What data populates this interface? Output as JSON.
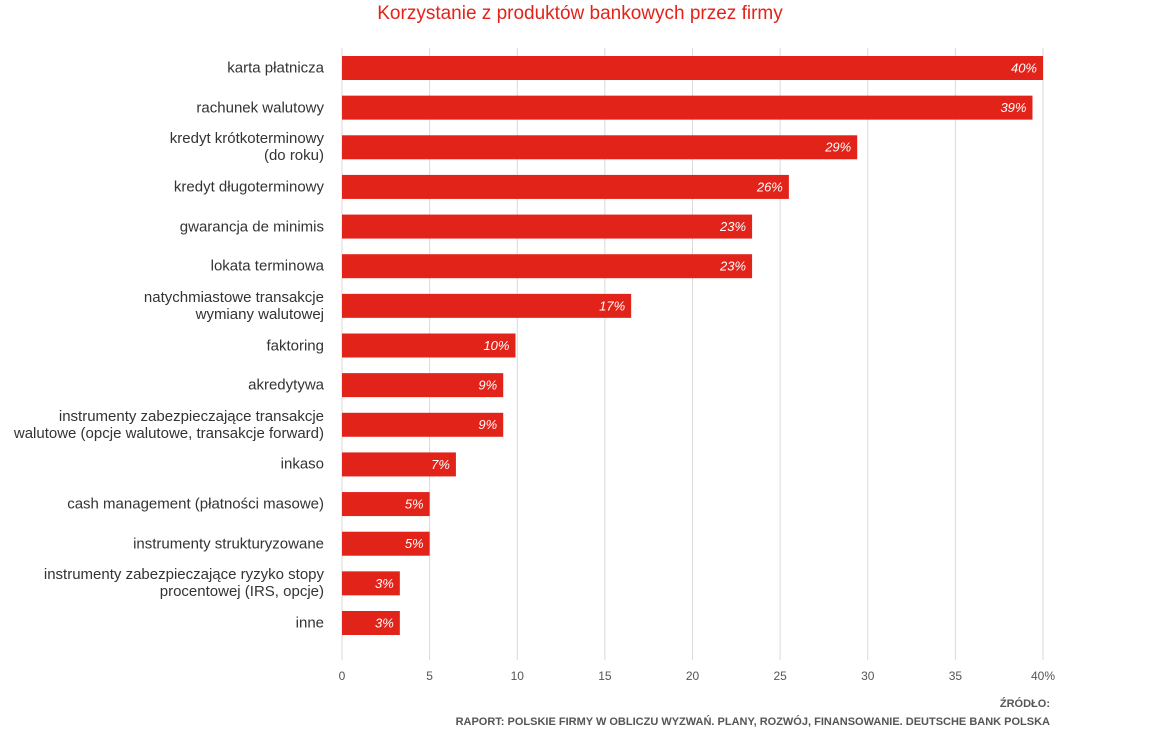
{
  "chart_data": {
    "type": "barh",
    "title": "Korzystanie z produktów bankowych przez firmy",
    "categories": [
      "karta płatnicza",
      "rachunek walutowy",
      "kredyt krótkoterminowy\n(do roku)",
      "kredyt długoterminowy",
      "gwarancja de minimis",
      "lokata terminowa",
      "natychmiastowe transakcje\nwymiany walutowej",
      "faktoring",
      "akredytywa",
      "instrumenty zabezpieczające transakcje\nwalutowe (opcje walutowe, transakcje forward)",
      "inkaso",
      "cash management (płatności masowe)",
      "instrumenty strukturyzowane",
      "instrumenty zabezpieczające ryzyko stopy\nprocentowej (IRS, opcje)",
      "inne"
    ],
    "values": [
      40,
      39.4,
      29.4,
      25.5,
      23.4,
      23.4,
      16.5,
      9.9,
      9.2,
      9.2,
      6.5,
      5,
      5,
      3.3,
      3.3
    ],
    "value_labels": [
      "40%",
      "39%",
      "29%",
      "26%",
      "23%",
      "23%",
      "17%",
      "10%",
      "9%",
      "9%",
      "7%",
      "5%",
      "5%",
      "3%",
      "3%"
    ],
    "color": "#e2231a",
    "xlim": [
      0,
      40
    ],
    "xticks": [
      0,
      5,
      10,
      15,
      20,
      25,
      30,
      35,
      {
        "value": 40,
        "label": "40%"
      }
    ],
    "grid": true,
    "source_label": "ŹRÓDŁO:",
    "source": "RAPORT: POLSKIE FIRMY W OBLICZU WYZWAŃ. PLANY, ROZWÓJ, FINANSOWANIE. DEUTSCHE BANK POLSKA"
  }
}
